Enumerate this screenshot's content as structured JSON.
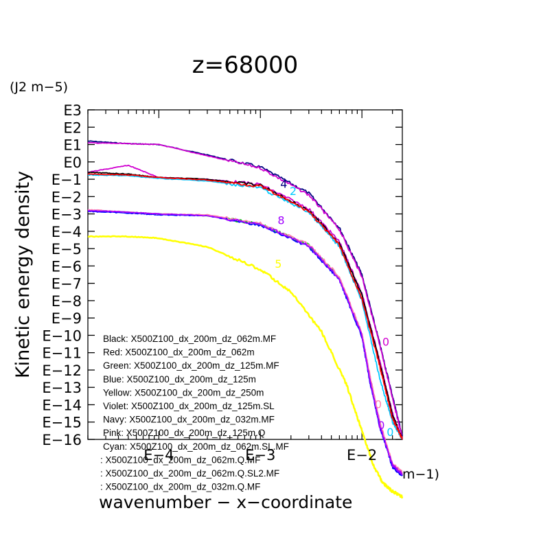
{
  "chart_data": {
    "type": "line",
    "title": "z=68000",
    "units": "(J2 m−5)",
    "ylabel": "Kinetic energy density",
    "xlabel": "wavenumber − x−coordinate",
    "x_unit_fragment": "m−1)",
    "xscale": "log",
    "yscale": "log",
    "x_range": [
      2e-05,
      0.025
    ],
    "y_range": [
      -16,
      3
    ],
    "y_ticks": [
      {
        "exp": 3,
        "label": "E3"
      },
      {
        "exp": 2,
        "label": "E2"
      },
      {
        "exp": 1,
        "label": "E1"
      },
      {
        "exp": 0,
        "label": "E0"
      },
      {
        "exp": -1,
        "label": "E−1"
      },
      {
        "exp": -2,
        "label": "E−2"
      },
      {
        "exp": -3,
        "label": "E−3"
      },
      {
        "exp": -4,
        "label": "E−4"
      },
      {
        "exp": -5,
        "label": "E−5"
      },
      {
        "exp": -6,
        "label": "E−6"
      },
      {
        "exp": -7,
        "label": "E−7"
      },
      {
        "exp": -8,
        "label": "E−8"
      },
      {
        "exp": -9,
        "label": "E−9"
      },
      {
        "exp": -10,
        "label": "E−10"
      },
      {
        "exp": -11,
        "label": "E−11"
      },
      {
        "exp": -12,
        "label": "E−12"
      },
      {
        "exp": -13,
        "label": "E−13"
      },
      {
        "exp": -14,
        "label": "E−14"
      },
      {
        "exp": -15,
        "label": "E−15"
      },
      {
        "exp": -16,
        "label": "E−16"
      }
    ],
    "x_ticks": [
      {
        "value": 0.0001,
        "label": "E−4"
      },
      {
        "value": 0.001,
        "label": "E−3"
      },
      {
        "value": 0.01,
        "label": "E−2"
      }
    ],
    "legend_placement": "inside-bottom-left",
    "legend_entries": [
      "Black: X500Z100_dx_200m_dz_062m.MF",
      "Red: X500Z100_dx_200m_dz_062m",
      "Green: X500Z100_dx_200m_dz_125m.MF",
      "Blue: X500Z100_dx_200m_dz_125m",
      "Yellow: X500Z100_dx_200m_dz_250m",
      "Violet: X500Z100_dx_200m_dz_125m.SL",
      "Navy: X500Z100_dx_200m_dz_032m.MF",
      "Pink: X500Z100_dx_200m_dz_125m.Q",
      "Cyan: X500Z100_dx_200m_dz_062m.SL.MF",
      ": X500Z100_dx_200m_dz_062m.Q.MF",
      ": X500Z100_dx_200m_dz_062m.Q.SL2.MF",
      ": X500Z100_dx_200m_dz_032m.Q.MF"
    ],
    "series": [
      {
        "color": "#000080",
        "x": [
          2e-05,
          5e-05,
          0.0001,
          0.0003,
          0.001,
          0.003,
          0.006,
          0.01,
          0.015,
          0.02,
          0.025
        ],
        "y": [
          1.2,
          1.05,
          1.0,
          0.4,
          -0.3,
          -1.8,
          -3.8,
          -6.5,
          -10.5,
          -13.5,
          -15.8
        ]
      },
      {
        "color": "#d000d0",
        "x": [
          2e-05,
          5e-05,
          0.0001,
          0.0003,
          0.001,
          0.003,
          0.006,
          0.01,
          0.015,
          0.02,
          0.025
        ],
        "y": [
          1.1,
          1.05,
          1.0,
          0.35,
          -0.35,
          -1.9,
          -3.9,
          -6.6,
          -10.6,
          -13.6,
          -15.9
        ]
      },
      {
        "color": "#d000d0",
        "x": [
          2e-05,
          5e-05,
          0.0001,
          0.0003,
          0.001,
          0.003,
          0.006,
          0.01,
          0.015,
          0.02,
          0.025
        ],
        "y": [
          -0.6,
          -0.2,
          -0.9,
          -1.0,
          -1.3,
          -2.7,
          -4.6,
          -7.6,
          -11.5,
          -14.5,
          -16.0
        ]
      },
      {
        "color": "#000000",
        "x": [
          2e-05,
          5e-05,
          0.0001,
          0.0003,
          0.001,
          0.003,
          0.006,
          0.01,
          0.015,
          0.02,
          0.025
        ],
        "y": [
          -0.6,
          -0.7,
          -0.9,
          -1.0,
          -1.35,
          -2.8,
          -4.7,
          -7.7,
          -11.6,
          -14.6,
          -16.0
        ]
      },
      {
        "color": "#00c8ff",
        "x": [
          2e-05,
          5e-05,
          0.0001,
          0.0003,
          0.001,
          0.003,
          0.006,
          0.01,
          0.015,
          0.02,
          0.025
        ],
        "y": [
          -0.75,
          -0.8,
          -0.95,
          -1.1,
          -1.5,
          -2.9,
          -4.9,
          -8.0,
          -12.5,
          -15.0,
          -16.0
        ]
      },
      {
        "color": "#ff0000",
        "x": [
          2e-05,
          5e-05,
          0.0001,
          0.0003,
          0.001,
          0.003,
          0.006,
          0.01,
          0.015,
          0.02,
          0.025
        ],
        "y": [
          -0.7,
          -0.75,
          -0.9,
          -1.05,
          -1.4,
          -2.85,
          -4.8,
          -7.9,
          -11.8,
          -14.8,
          -16.0
        ]
      },
      {
        "color": "#00d000",
        "x": [
          2e-05,
          5e-05,
          0.0001,
          0.0003,
          0.001,
          0.003,
          0.006,
          0.01,
          0.012,
          0.015,
          0.02,
          0.025
        ],
        "y": [
          -2.8,
          -2.9,
          -3.0,
          -3.1,
          -3.6,
          -4.8,
          -6.7,
          -10.0,
          -12.5,
          -15.2,
          -17.5,
          -18.0
        ]
      },
      {
        "color": "#0000ff",
        "x": [
          2e-05,
          5e-05,
          0.0001,
          0.0003,
          0.001,
          0.003,
          0.006,
          0.01,
          0.012,
          0.015,
          0.02,
          0.025
        ],
        "y": [
          -2.85,
          -2.95,
          -3.05,
          -3.1,
          -3.65,
          -4.9,
          -6.8,
          -10.1,
          -12.7,
          -15.3,
          -17.6,
          -18.1
        ]
      },
      {
        "color": "#ff80b0",
        "x": [
          2e-05,
          5e-05,
          0.0001,
          0.0003,
          0.001,
          0.003,
          0.006,
          0.01,
          0.012,
          0.015,
          0.02,
          0.025
        ],
        "y": [
          -2.75,
          -2.9,
          -3.0,
          -3.05,
          -3.55,
          -4.75,
          -6.6,
          -9.9,
          -12.3,
          -15.0,
          -17.4,
          -17.9
        ]
      },
      {
        "color": "#a000ff",
        "x": [
          2e-05,
          5e-05,
          0.0001,
          0.0003,
          0.001,
          0.003,
          0.006,
          0.01,
          0.012,
          0.015,
          0.02,
          0.025
        ],
        "y": [
          -2.8,
          -2.9,
          -3.0,
          -3.1,
          -3.6,
          -4.85,
          -6.75,
          -10.0,
          -12.6,
          -15.2,
          -17.5,
          -18.0
        ]
      },
      {
        "color": "#ffff00",
        "x": [
          2e-05,
          5e-05,
          0.0001,
          0.0003,
          0.001,
          0.002,
          0.004,
          0.007,
          0.01,
          0.013,
          0.016,
          0.02,
          0.025
        ],
        "y": [
          -4.3,
          -4.3,
          -4.4,
          -4.9,
          -6.2,
          -7.5,
          -9.8,
          -12.8,
          -15.5,
          -17.5,
          -18.5,
          -19.0,
          -19.3
        ]
      }
    ],
    "curve_labels": [
      {
        "text": "4",
        "x": 0.0017,
        "y": -1.5,
        "color": "#000080"
      },
      {
        "text": "2",
        "x": 0.0021,
        "y": -1.9,
        "color": "#00c8ff"
      },
      {
        "text": "8",
        "x": 0.0016,
        "y": -3.6,
        "color": "#a000ff"
      },
      {
        "text": "5",
        "x": 0.0015,
        "y": -6.1,
        "color": "#ffff00"
      },
      {
        "text": "0",
        "x": 0.0172,
        "y": -10.6,
        "color": "#d000d0"
      },
      {
        "text": "0",
        "x": 0.0145,
        "y": -14.2,
        "color": "#ff80b0"
      },
      {
        "text": "0",
        "x": 0.0155,
        "y": -15.4,
        "color": "#a000ff"
      },
      {
        "text": "0",
        "x": 0.019,
        "y": -15.8,
        "color": "#00c8ff"
      }
    ]
  }
}
